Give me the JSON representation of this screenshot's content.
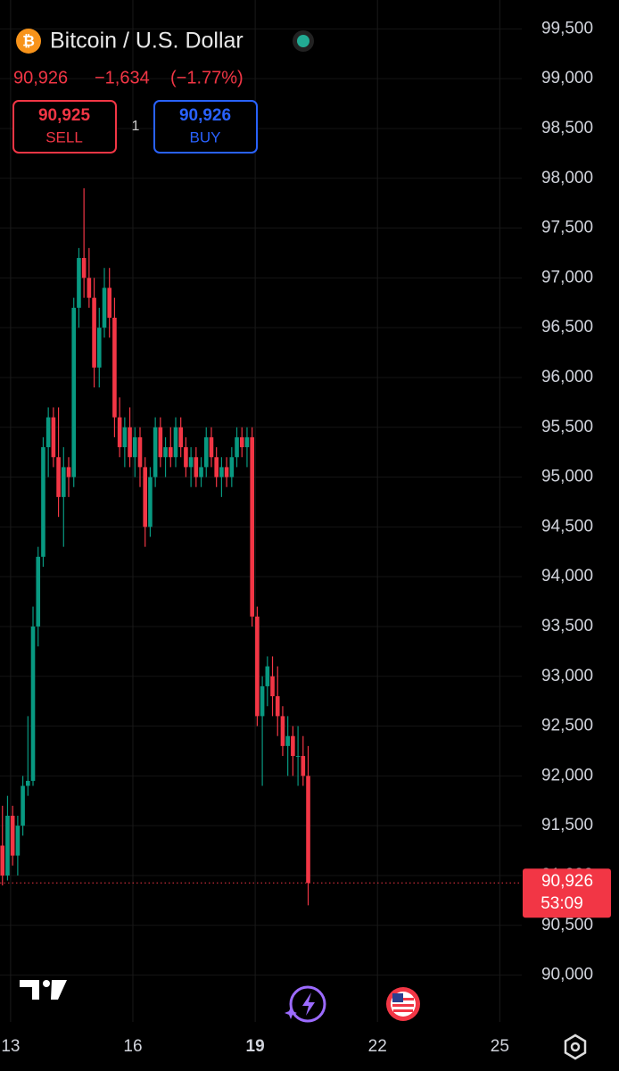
{
  "header": {
    "symbol": "Bitcoin / U.S. Dollar",
    "last": "90,926",
    "change": "−1,634",
    "change_pct": "(−1.77%)",
    "sell_price": "90,925",
    "sell_label": "SELL",
    "spread": "1",
    "buy_price": "90,926",
    "buy_label": "BUY"
  },
  "chart_data": {
    "type": "candlestick",
    "up_color": "#089981",
    "down_color": "#f23645",
    "x": [
      12.8,
      12.925,
      13.05,
      13.175,
      13.3,
      13.425,
      13.55,
      13.675,
      13.8,
      13.925,
      14.05,
      14.175,
      14.3,
      14.425,
      14.55,
      14.675,
      14.8,
      14.925,
      15.05,
      15.175,
      15.3,
      15.425,
      15.55,
      15.675,
      15.8,
      15.925,
      16.05,
      16.175,
      16.3,
      16.425,
      16.55,
      16.675,
      16.8,
      16.925,
      17.05,
      17.175,
      17.3,
      17.425,
      17.55,
      17.675,
      17.8,
      17.925,
      18.05,
      18.175,
      18.3,
      18.425,
      18.55,
      18.675,
      18.8,
      18.925,
      19.05,
      19.175,
      19.3,
      19.425,
      19.55,
      19.675,
      19.8,
      19.925,
      20.05,
      20.175,
      20.3
    ],
    "open": [
      91300,
      91000,
      91600,
      91200,
      91500,
      91900,
      91950,
      93500,
      94200,
      95300,
      95600,
      95200,
      94800,
      95100,
      95000,
      96700,
      97200,
      97000,
      96800,
      96100,
      96500,
      96900,
      96600,
      95600,
      95300,
      95500,
      95200,
      95400,
      95100,
      94500,
      95000,
      95500,
      95200,
      95300,
      95200,
      95500,
      95300,
      95100,
      95200,
      95000,
      95100,
      95400,
      95200,
      95000,
      95100,
      95000,
      95200,
      95400,
      95300,
      95400,
      93600,
      92600,
      92900,
      93000,
      92800,
      92600,
      92300,
      92400,
      92200,
      92200,
      92000
    ],
    "high": [
      91700,
      91800,
      91700,
      91600,
      92000,
      92600,
      93700,
      94300,
      95400,
      95700,
      95700,
      95700,
      95300,
      95200,
      96800,
      97300,
      97900,
      97300,
      97000,
      96700,
      97100,
      97100,
      96800,
      95800,
      95600,
      95700,
      95500,
      95500,
      95200,
      95100,
      95600,
      95600,
      95400,
      95500,
      95600,
      95600,
      95400,
      95300,
      95300,
      95200,
      95500,
      95500,
      95300,
      95200,
      95200,
      95300,
      95500,
      95500,
      95500,
      95500,
      93700,
      93000,
      93200,
      93200,
      93100,
      92700,
      92600,
      92500,
      92500,
      92400,
      92300
    ],
    "low": [
      90900,
      90950,
      91100,
      91000,
      91400,
      91800,
      91900,
      93300,
      94100,
      95000,
      95100,
      94600,
      94300,
      94800,
      94900,
      96500,
      96800,
      96700,
      95900,
      95900,
      96400,
      96400,
      95400,
      95200,
      95100,
      95100,
      95000,
      94900,
      94300,
      94400,
      94900,
      95100,
      95000,
      95100,
      95100,
      95200,
      95000,
      94900,
      94900,
      94900,
      95000,
      95100,
      94900,
      94800,
      94900,
      94900,
      95100,
      95200,
      95100,
      93500,
      92500,
      91900,
      92700,
      92600,
      92400,
      92200,
      92000,
      92000,
      91900,
      91900,
      90700
    ],
    "close": [
      91000,
      91600,
      91200,
      91500,
      91900,
      91950,
      93500,
      94200,
      95300,
      95600,
      95200,
      94800,
      95100,
      95000,
      96700,
      97200,
      97000,
      96800,
      96100,
      96500,
      96900,
      96600,
      95600,
      95300,
      95500,
      95200,
      95400,
      95100,
      94500,
      95000,
      95500,
      95200,
      95300,
      95200,
      95500,
      95300,
      95100,
      95200,
      95000,
      95100,
      95400,
      95200,
      95000,
      95100,
      95000,
      95200,
      95400,
      95300,
      95400,
      93600,
      92600,
      92900,
      93100,
      92800,
      92600,
      92300,
      92400,
      92200,
      92200,
      92000,
      90926
    ],
    "xlim": [
      12.74,
      25.54
    ],
    "xticks": [
      13,
      16,
      19,
      22,
      25
    ],
    "ylim": [
      89530,
      99790
    ],
    "yticks": [
      {
        "value": 90000,
        "label": "90,000"
      },
      {
        "value": 90500,
        "label": "90,500"
      },
      {
        "value": 91000,
        "label": "91,000"
      },
      {
        "value": 91500,
        "label": "91,500"
      },
      {
        "value": 92000,
        "label": "92,000"
      },
      {
        "value": 92500,
        "label": "92,500"
      },
      {
        "value": 93000,
        "label": "93,000"
      },
      {
        "value": 93500,
        "label": "93,500"
      },
      {
        "value": 94000,
        "label": "94,000"
      },
      {
        "value": 94500,
        "label": "94,500"
      },
      {
        "value": 95000,
        "label": "95,000"
      },
      {
        "value": 95500,
        "label": "95,500"
      },
      {
        "value": 96000,
        "label": "96,000"
      },
      {
        "value": 96500,
        "label": "96,500"
      },
      {
        "value": 97000,
        "label": "97,000"
      },
      {
        "value": 97500,
        "label": "97,500"
      },
      {
        "value": 98000,
        "label": "98,000"
      },
      {
        "value": 98500,
        "label": "98,500"
      },
      {
        "value": 99000,
        "label": "99,000"
      },
      {
        "value": 99500,
        "label": "99,500"
      }
    ],
    "grid": true,
    "price_tag": {
      "value": 90926,
      "label": "90,926",
      "countdown": "53:09"
    }
  }
}
